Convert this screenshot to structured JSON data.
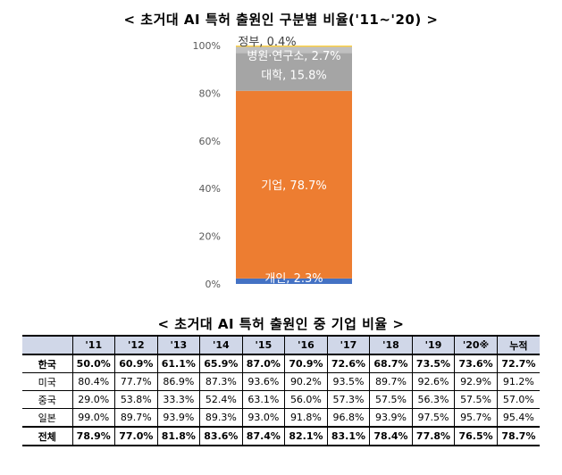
{
  "chart_title": "< 초거대 AI 특허 출원인 구분별 비율('11~'20) >",
  "table_title": "< 초거대 AI 특허 출원인 중 기업 비율 >",
  "chart_data": [
    {
      "type": "bar",
      "stacked": true,
      "title": "< 초거대 AI 특허 출원인 구분별 비율('11~'20) >",
      "ylim": [
        0,
        100
      ],
      "yticks": [
        "0%",
        "20%",
        "40%",
        "60%",
        "80%",
        "100%"
      ],
      "grid": false,
      "series": [
        {
          "name": "개인",
          "value": 2.3,
          "label": "개인, 2.3%",
          "color": "#4472c4"
        },
        {
          "name": "기업",
          "value": 78.7,
          "label": "기업, 78.7%",
          "color": "#ed7d31"
        },
        {
          "name": "대학",
          "value": 15.8,
          "label": "대학, 15.8%",
          "color": "#a5a5a5"
        },
        {
          "name": "병원·연구소",
          "value": 2.7,
          "label": "병원·연구소, 2.7%",
          "color": "#c0c0c0"
        },
        {
          "name": "정부",
          "value": 0.4,
          "label": "정부, 0.4%",
          "color": "#ffc000"
        }
      ]
    },
    {
      "type": "table",
      "title": "< 초거대 AI 특허 출원인 중 기업 비율 >",
      "columns": [
        "",
        "'11",
        "'12",
        "'13",
        "'14",
        "'15",
        "'16",
        "'17",
        "'18",
        "'19",
        "'20※",
        "누적"
      ],
      "rows": [
        {
          "label": "한국",
          "style": "highlight",
          "values": [
            "50.0%",
            "60.9%",
            "61.1%",
            "65.9%",
            "87.0%",
            "70.9%",
            "72.6%",
            "68.7%",
            "73.5%",
            "73.6%",
            "72.7%"
          ]
        },
        {
          "label": "미국",
          "style": "normal",
          "values": [
            "80.4%",
            "77.7%",
            "86.9%",
            "87.3%",
            "93.6%",
            "90.2%",
            "93.5%",
            "89.7%",
            "92.6%",
            "92.9%",
            "91.2%"
          ]
        },
        {
          "label": "중국",
          "style": "normal",
          "values": [
            "29.0%",
            "53.8%",
            "33.3%",
            "52.4%",
            "63.1%",
            "56.0%",
            "57.3%",
            "57.5%",
            "56.3%",
            "57.5%",
            "57.0%"
          ]
        },
        {
          "label": "일본",
          "style": "normal",
          "values": [
            "99.0%",
            "89.7%",
            "93.9%",
            "89.3%",
            "93.0%",
            "91.8%",
            "96.8%",
            "93.9%",
            "97.5%",
            "95.7%",
            "95.4%"
          ]
        },
        {
          "label": "전체",
          "style": "total",
          "values": [
            "78.9%",
            "77.0%",
            "81.8%",
            "83.6%",
            "87.4%",
            "82.1%",
            "83.1%",
            "78.4%",
            "77.8%",
            "76.5%",
            "78.7%"
          ]
        }
      ]
    }
  ]
}
